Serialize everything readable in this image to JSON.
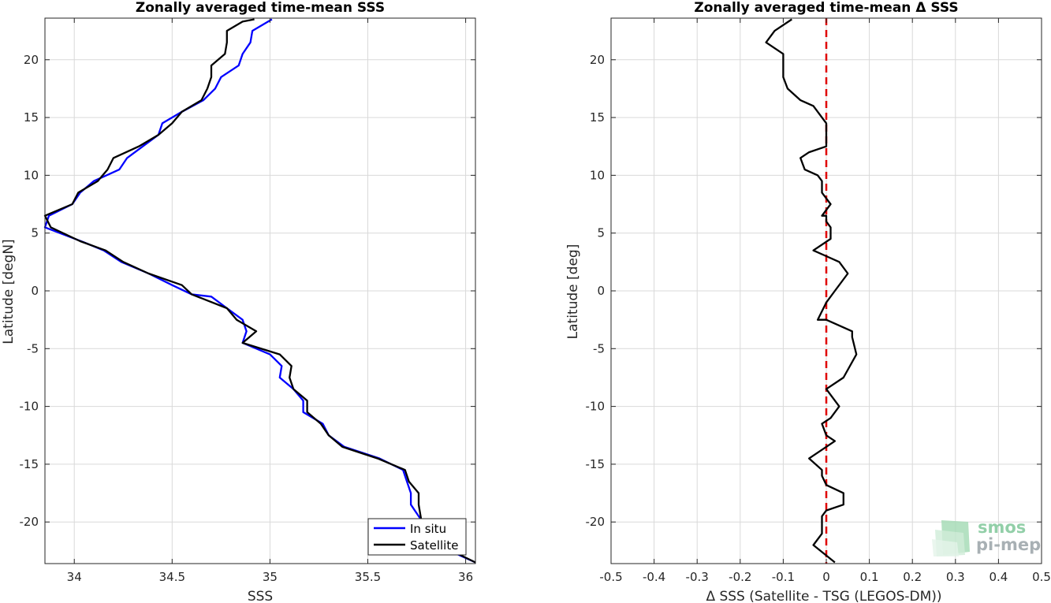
{
  "chart_data": [
    {
      "type": "line",
      "title": "Zonally averaged time-mean SSS",
      "xlabel": "SSS",
      "ylabel": "Latitude [degN]",
      "xlim": [
        33.85,
        36.05
      ],
      "ylim": [
        -23.6,
        23.6
      ],
      "xticks": [
        34,
        34.5,
        35,
        35.5,
        36
      ],
      "yticks": [
        -20,
        -15,
        -10,
        -5,
        0,
        5,
        10,
        15,
        20
      ],
      "grid": true,
      "legend": "bottom-right",
      "series": [
        {
          "name": "In situ",
          "color": "#0000ff",
          "points": [
            [
              36.05,
              -23.5
            ],
            [
              35.92,
              -22.5
            ],
            [
              35.8,
              -20.5
            ],
            [
              35.76,
              -19.5
            ],
            [
              35.72,
              -18.5
            ],
            [
              35.72,
              -17.5
            ],
            [
              35.7,
              -16.5
            ],
            [
              35.68,
              -15.5
            ],
            [
              35.56,
              -14.5
            ],
            [
              35.38,
              -13.5
            ],
            [
              35.3,
              -12.5
            ],
            [
              35.27,
              -11.5
            ],
            [
              35.17,
              -10.5
            ],
            [
              35.17,
              -9.5
            ],
            [
              35.12,
              -8.5
            ],
            [
              35.05,
              -7.5
            ],
            [
              35.06,
              -6.5
            ],
            [
              35.0,
              -5.5
            ],
            [
              34.86,
              -4.5
            ],
            [
              34.88,
              -3.5
            ],
            [
              34.86,
              -2.5
            ],
            [
              34.78,
              -1.5
            ],
            [
              34.7,
              -0.5
            ],
            [
              34.6,
              -0.3
            ],
            [
              34.5,
              0.5
            ],
            [
              34.38,
              1.5
            ],
            [
              34.24,
              2.5
            ],
            [
              34.15,
              3.5
            ],
            [
              34.05,
              4.2
            ],
            [
              33.85,
              5.5
            ],
            [
              33.87,
              6.5
            ],
            [
              33.99,
              7.5
            ],
            [
              34.03,
              8.5
            ],
            [
              34.1,
              9.5
            ],
            [
              34.23,
              10.5
            ],
            [
              34.27,
              11.5
            ],
            [
              34.35,
              12.5
            ],
            [
              34.43,
              13.5
            ],
            [
              34.45,
              14.5
            ],
            [
              34.55,
              15.5
            ],
            [
              34.66,
              16.5
            ],
            [
              34.72,
              17.5
            ],
            [
              34.75,
              18.5
            ],
            [
              34.84,
              19.5
            ],
            [
              34.86,
              20.5
            ],
            [
              34.9,
              21.5
            ],
            [
              34.91,
              22.5
            ],
            [
              35.01,
              23.5
            ]
          ]
        },
        {
          "name": "Satellite",
          "color": "#000000",
          "points": [
            [
              36.05,
              -23.5
            ],
            [
              35.93,
              -22.5
            ],
            [
              35.82,
              -21.5
            ],
            [
              35.78,
              -20.5
            ],
            [
              35.77,
              -19.5
            ],
            [
              35.76,
              -18.5
            ],
            [
              35.76,
              -17.5
            ],
            [
              35.71,
              -16.5
            ],
            [
              35.69,
              -15.5
            ],
            [
              35.55,
              -14.5
            ],
            [
              35.37,
              -13.5
            ],
            [
              35.3,
              -12.5
            ],
            [
              35.26,
              -11.5
            ],
            [
              35.19,
              -10.5
            ],
            [
              35.19,
              -9.5
            ],
            [
              35.12,
              -8.5
            ],
            [
              35.1,
              -7.5
            ],
            [
              35.11,
              -6.5
            ],
            [
              35.05,
              -5.5
            ],
            [
              34.86,
              -4.5
            ],
            [
              34.93,
              -3.5
            ],
            [
              34.83,
              -2.5
            ],
            [
              34.78,
              -1.5
            ],
            [
              34.6,
              -0.3
            ],
            [
              34.55,
              0.5
            ],
            [
              34.38,
              1.5
            ],
            [
              34.25,
              2.5
            ],
            [
              34.16,
              3.5
            ],
            [
              34.03,
              4.3
            ],
            [
              33.88,
              5.5
            ],
            [
              33.85,
              6.5
            ],
            [
              33.99,
              7.5
            ],
            [
              34.02,
              8.5
            ],
            [
              34.12,
              9.5
            ],
            [
              34.17,
              10.5
            ],
            [
              34.2,
              11.5
            ],
            [
              34.33,
              12.5
            ],
            [
              34.43,
              13.5
            ],
            [
              34.5,
              14.5
            ],
            [
              34.55,
              15.5
            ],
            [
              34.65,
              16.5
            ],
            [
              34.68,
              17.5
            ],
            [
              34.7,
              18.5
            ],
            [
              34.7,
              19.5
            ],
            [
              34.77,
              20.5
            ],
            [
              34.78,
              21.5
            ],
            [
              34.78,
              22.5
            ],
            [
              34.86,
              23.3
            ],
            [
              34.92,
              23.5
            ]
          ]
        }
      ]
    },
    {
      "type": "line",
      "title": "Zonally averaged time-mean Δ SSS",
      "xlabel": "Δ SSS (Satellite - TSG (LEGOS-DM))",
      "ylabel": "Latitude [deg]",
      "xlim": [
        -0.5,
        0.5
      ],
      "ylim": [
        -23.6,
        23.6
      ],
      "xticks": [
        -0.5,
        -0.4,
        -0.3,
        -0.2,
        -0.1,
        0,
        0.1,
        0.2,
        0.3,
        0.4,
        0.5
      ],
      "yticks": [
        -20,
        -15,
        -10,
        -5,
        0,
        5,
        10,
        15,
        20
      ],
      "grid": true,
      "reference_line": {
        "x": 0,
        "color": "#e00000",
        "style": "dashed"
      },
      "series": [
        {
          "color": "#000000",
          "points": [
            [
              0.02,
              -23.5
            ],
            [
              -0.03,
              -22.0
            ],
            [
              -0.01,
              -21.0
            ],
            [
              -0.01,
              -20.0
            ],
            [
              -0.01,
              -19.5
            ],
            [
              0.0,
              -19.0
            ],
            [
              0.04,
              -18.5
            ],
            [
              0.04,
              -17.5
            ],
            [
              0.0,
              -16.8
            ],
            [
              -0.01,
              -16.0
            ],
            [
              -0.01,
              -15.5
            ],
            [
              -0.04,
              -14.5
            ],
            [
              0.02,
              -13.0
            ],
            [
              0.0,
              -12.5
            ],
            [
              -0.01,
              -11.5
            ],
            [
              0.01,
              -11.0
            ],
            [
              0.03,
              -10.0
            ],
            [
              0.0,
              -8.5
            ],
            [
              0.04,
              -7.5
            ],
            [
              0.07,
              -5.5
            ],
            [
              0.06,
              -4.0
            ],
            [
              0.06,
              -3.5
            ],
            [
              0.0,
              -2.5
            ],
            [
              -0.02,
              -2.5
            ],
            [
              0.0,
              -1.0
            ],
            [
              0.02,
              0.0
            ],
            [
              0.05,
              1.5
            ],
            [
              0.03,
              2.5
            ],
            [
              0.0,
              3.0
            ],
            [
              -0.03,
              3.5
            ],
            [
              0.01,
              4.5
            ],
            [
              0.01,
              5.5
            ],
            [
              0.0,
              6.0
            ],
            [
              0.0,
              6.5
            ],
            [
              -0.01,
              6.5
            ],
            [
              0.01,
              7.5
            ],
            [
              -0.01,
              8.5
            ],
            [
              -0.01,
              9.5
            ],
            [
              -0.02,
              10.0
            ],
            [
              -0.05,
              10.5
            ],
            [
              -0.06,
              11.5
            ],
            [
              -0.04,
              12.0
            ],
            [
              0.0,
              12.5
            ],
            [
              0.0,
              13.0
            ],
            [
              0.0,
              14.0
            ],
            [
              0.0,
              14.5
            ],
            [
              -0.01,
              15.0
            ],
            [
              -0.03,
              16.0
            ],
            [
              -0.06,
              16.5
            ],
            [
              -0.09,
              17.5
            ],
            [
              -0.1,
              18.5
            ],
            [
              -0.1,
              19.5
            ],
            [
              -0.1,
              20.5
            ],
            [
              -0.14,
              21.5
            ],
            [
              -0.12,
              22.5
            ],
            [
              -0.08,
              23.5
            ]
          ]
        }
      ]
    }
  ],
  "legend": {
    "items": [
      {
        "label": "In situ",
        "color": "#0000ff"
      },
      {
        "label": "Satellite",
        "color": "#000000"
      }
    ]
  },
  "logo": {
    "line1": "smos",
    "line2": "pi-mep"
  }
}
